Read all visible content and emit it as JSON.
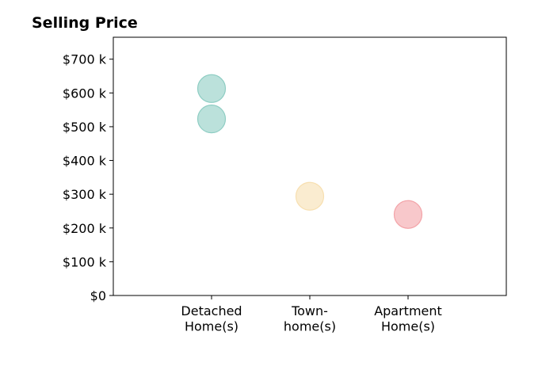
{
  "chart_data": {
    "type": "scatter",
    "title": "Selling Price",
    "xlabel": "",
    "ylabel": "",
    "categories": [
      [
        "Detached",
        "Home(s)"
      ],
      [
        "Town-",
        "home(s)"
      ],
      [
        "Apartment",
        "Home(s)"
      ]
    ],
    "y_ticks": [
      0,
      100000,
      200000,
      300000,
      400000,
      500000,
      600000,
      700000
    ],
    "y_tick_labels": [
      "$0",
      "$100 k",
      "$200 k",
      "$300 k",
      "$400 k",
      "$500 k",
      "$600 k",
      "$700 k"
    ],
    "ylim": [
      0,
      765000
    ],
    "xlim": [
      -1,
      3
    ],
    "grid": false,
    "points": [
      {
        "category": 0,
        "y": 613000,
        "color": "#8ecdc3"
      },
      {
        "category": 0,
        "y": 523000,
        "color": "#8ecdc3"
      },
      {
        "category": 1,
        "y": 294000,
        "color": "#f7dfb0"
      },
      {
        "category": 2,
        "y": 240000,
        "color": "#f3a3a8"
      }
    ]
  }
}
